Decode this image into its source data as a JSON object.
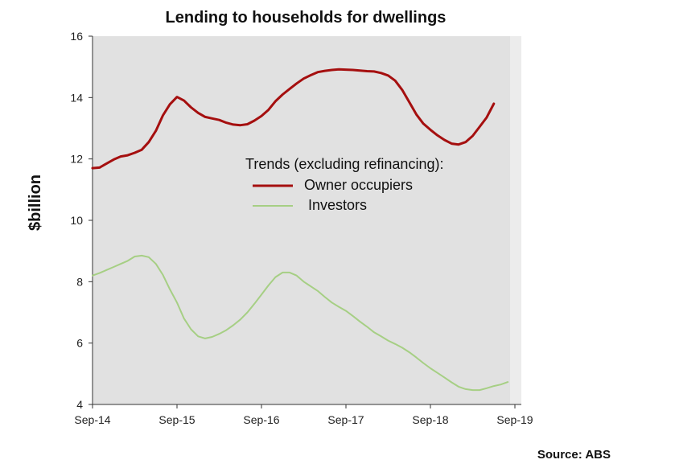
{
  "chart_data": {
    "type": "line",
    "title": "Lending to households for dwellings",
    "ylabel": "$billion",
    "xlabel": "",
    "ylim": [
      4,
      16
    ],
    "yticks": [
      4,
      6,
      8,
      10,
      12,
      14,
      16
    ],
    "x_range": [
      2014.667,
      2019.667
    ],
    "x_tick_labels": [
      "Sep-14",
      "Sep-15",
      "Sep-16",
      "Sep-17",
      "Sep-18",
      "Sep-19"
    ],
    "x_tick_values": [
      2014.667,
      2015.667,
      2016.667,
      2017.667,
      2018.667,
      2019.667
    ],
    "legend_title": "Trends (excluding refinancing):",
    "legend_position": "center",
    "grid": false,
    "background_color": "#e1e1e1",
    "source": "Source: ABS",
    "series": [
      {
        "name": "Owner occupiers",
        "color": "#a50f0f",
        "points": [
          [
            2014.667,
            11.7
          ],
          [
            2014.75,
            11.72
          ],
          [
            2014.833,
            11.85
          ],
          [
            2014.917,
            11.98
          ],
          [
            2015.0,
            12.08
          ],
          [
            2015.083,
            12.12
          ],
          [
            2015.167,
            12.2
          ],
          [
            2015.25,
            12.3
          ],
          [
            2015.333,
            12.55
          ],
          [
            2015.417,
            12.92
          ],
          [
            2015.5,
            13.42
          ],
          [
            2015.583,
            13.78
          ],
          [
            2015.667,
            14.02
          ],
          [
            2015.75,
            13.9
          ],
          [
            2015.833,
            13.68
          ],
          [
            2015.917,
            13.5
          ],
          [
            2016.0,
            13.37
          ],
          [
            2016.083,
            13.32
          ],
          [
            2016.167,
            13.27
          ],
          [
            2016.25,
            13.18
          ],
          [
            2016.333,
            13.12
          ],
          [
            2016.417,
            13.1
          ],
          [
            2016.5,
            13.13
          ],
          [
            2016.583,
            13.25
          ],
          [
            2016.667,
            13.4
          ],
          [
            2016.75,
            13.6
          ],
          [
            2016.833,
            13.88
          ],
          [
            2016.917,
            14.1
          ],
          [
            2017.0,
            14.28
          ],
          [
            2017.083,
            14.46
          ],
          [
            2017.167,
            14.62
          ],
          [
            2017.25,
            14.73
          ],
          [
            2017.333,
            14.83
          ],
          [
            2017.417,
            14.87
          ],
          [
            2017.5,
            14.9
          ],
          [
            2017.583,
            14.92
          ],
          [
            2017.667,
            14.91
          ],
          [
            2017.75,
            14.9
          ],
          [
            2017.833,
            14.88
          ],
          [
            2017.917,
            14.86
          ],
          [
            2018.0,
            14.85
          ],
          [
            2018.083,
            14.8
          ],
          [
            2018.167,
            14.72
          ],
          [
            2018.25,
            14.55
          ],
          [
            2018.333,
            14.25
          ],
          [
            2018.417,
            13.85
          ],
          [
            2018.5,
            13.45
          ],
          [
            2018.583,
            13.15
          ],
          [
            2018.667,
            12.95
          ],
          [
            2018.75,
            12.77
          ],
          [
            2018.833,
            12.62
          ],
          [
            2018.917,
            12.5
          ],
          [
            2019.0,
            12.47
          ],
          [
            2019.083,
            12.55
          ],
          [
            2019.167,
            12.75
          ],
          [
            2019.25,
            13.05
          ],
          [
            2019.333,
            13.35
          ],
          [
            2019.417,
            13.8
          ]
        ]
      },
      {
        "name": "Investors",
        "color": "#a6cf84",
        "points": [
          [
            2014.667,
            8.2
          ],
          [
            2014.75,
            8.28
          ],
          [
            2014.833,
            8.38
          ],
          [
            2014.917,
            8.48
          ],
          [
            2015.0,
            8.58
          ],
          [
            2015.083,
            8.68
          ],
          [
            2015.167,
            8.82
          ],
          [
            2015.25,
            8.85
          ],
          [
            2015.333,
            8.8
          ],
          [
            2015.417,
            8.58
          ],
          [
            2015.5,
            8.22
          ],
          [
            2015.583,
            7.75
          ],
          [
            2015.667,
            7.32
          ],
          [
            2015.75,
            6.8
          ],
          [
            2015.833,
            6.45
          ],
          [
            2015.917,
            6.22
          ],
          [
            2016.0,
            6.15
          ],
          [
            2016.083,
            6.2
          ],
          [
            2016.167,
            6.3
          ],
          [
            2016.25,
            6.42
          ],
          [
            2016.333,
            6.58
          ],
          [
            2016.417,
            6.77
          ],
          [
            2016.5,
            7.0
          ],
          [
            2016.583,
            7.28
          ],
          [
            2016.667,
            7.58
          ],
          [
            2016.75,
            7.88
          ],
          [
            2016.833,
            8.15
          ],
          [
            2016.917,
            8.3
          ],
          [
            2017.0,
            8.3
          ],
          [
            2017.083,
            8.2
          ],
          [
            2017.167,
            8.0
          ],
          [
            2017.25,
            7.85
          ],
          [
            2017.333,
            7.7
          ],
          [
            2017.417,
            7.5
          ],
          [
            2017.5,
            7.32
          ],
          [
            2017.583,
            7.18
          ],
          [
            2017.667,
            7.05
          ],
          [
            2017.75,
            6.88
          ],
          [
            2017.833,
            6.7
          ],
          [
            2017.917,
            6.53
          ],
          [
            2018.0,
            6.35
          ],
          [
            2018.083,
            6.22
          ],
          [
            2018.167,
            6.08
          ],
          [
            2018.25,
            5.97
          ],
          [
            2018.333,
            5.85
          ],
          [
            2018.417,
            5.7
          ],
          [
            2018.5,
            5.53
          ],
          [
            2018.583,
            5.35
          ],
          [
            2018.667,
            5.18
          ],
          [
            2018.75,
            5.03
          ],
          [
            2018.833,
            4.88
          ],
          [
            2018.917,
            4.72
          ],
          [
            2019.0,
            4.58
          ],
          [
            2019.083,
            4.5
          ],
          [
            2019.167,
            4.47
          ],
          [
            2019.25,
            4.47
          ],
          [
            2019.333,
            4.53
          ],
          [
            2019.417,
            4.6
          ],
          [
            2019.5,
            4.65
          ],
          [
            2019.583,
            4.73
          ]
        ]
      }
    ]
  }
}
